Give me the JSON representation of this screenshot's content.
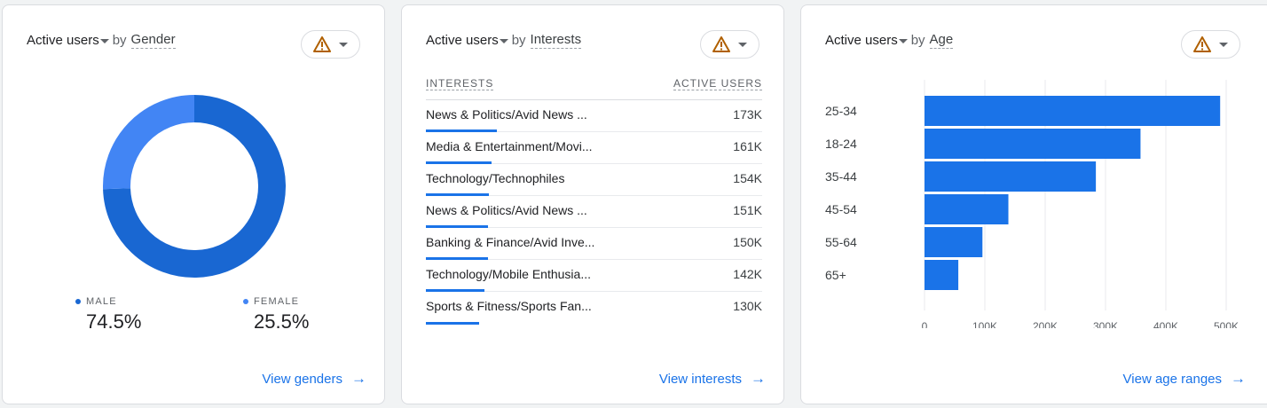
{
  "cards": {
    "gender": {
      "metric": "Active users",
      "by": "by",
      "dimension": "Gender",
      "view_link": "View genders",
      "legend": [
        {
          "label": "MALE",
          "value": "74.5%",
          "color": "#1967d2",
          "fraction": 0.745
        },
        {
          "label": "FEMALE",
          "value": "25.5%",
          "color": "#4285f4",
          "fraction": 0.255
        }
      ]
    },
    "interests": {
      "metric": "Active users",
      "by": "by",
      "dimension": "Interests",
      "view_link": "View interests",
      "col_headers": [
        "INTERESTS",
        "ACTIVE USERS"
      ],
      "rows": [
        {
          "label": "News & Politics/Avid News ...",
          "value": "173K",
          "share": 1.0
        },
        {
          "label": "Media & Entertainment/Movi...",
          "value": "161K",
          "share": 0.93
        },
        {
          "label": "Technology/Technophiles",
          "value": "154K",
          "share": 0.89
        },
        {
          "label": "News & Politics/Avid News ...",
          "value": "151K",
          "share": 0.87
        },
        {
          "label": "Banking & Finance/Avid Inve...",
          "value": "150K",
          "share": 0.87
        },
        {
          "label": "Technology/Mobile Enthusia...",
          "value": "142K",
          "share": 0.82
        },
        {
          "label": "Sports & Fitness/Sports Fan...",
          "value": "130K",
          "share": 0.75
        }
      ]
    },
    "age": {
      "metric": "Active users",
      "by": "by",
      "dimension": "Age",
      "view_link": "View age ranges"
    }
  },
  "icons": {
    "warning": "warning-triangle-icon",
    "dropdown": "caret-down-icon",
    "arrow": "arrow-right-icon"
  },
  "colors": {
    "accent": "#1a73e8",
    "warning": "#b06000"
  },
  "chart_data": [
    {
      "type": "pie",
      "categories": [
        "MALE",
        "FEMALE"
      ],
      "values": [
        74.5,
        25.5
      ],
      "colors": [
        "#1967d2",
        "#4285f4"
      ]
    },
    {
      "type": "bar",
      "orientation": "horizontal",
      "categories": [
        "25-34",
        "18-24",
        "35-44",
        "45-54",
        "55-64",
        "65+"
      ],
      "values": [
        490000,
        358000,
        284000,
        139000,
        96000,
        56000
      ],
      "xlim": [
        0,
        500000
      ],
      "xticks": [
        "0",
        "100K",
        "200K",
        "300K",
        "400K",
        "500K"
      ],
      "grid": true,
      "color": "#1a73e8"
    }
  ]
}
